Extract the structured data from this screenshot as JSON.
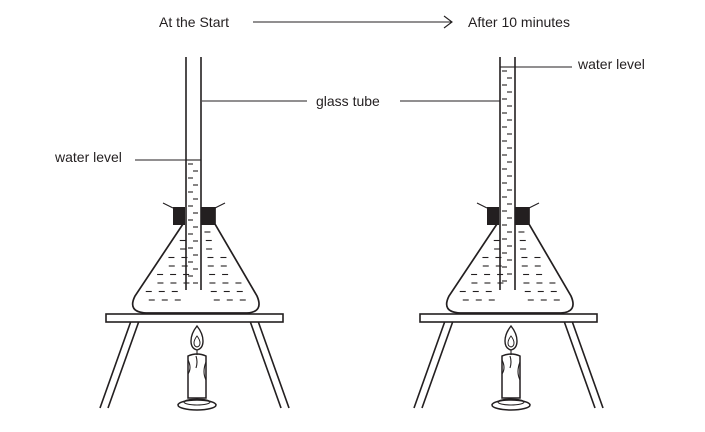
{
  "header": {
    "start_label": "At the Start",
    "end_label": "After 10 minutes"
  },
  "labels": {
    "glass_tube": "glass tube",
    "water_level_start": "water level",
    "water_level_end": "water level"
  },
  "colors": {
    "ink": "#231f20",
    "stopper": "#231f20",
    "background": "#ffffff"
  }
}
